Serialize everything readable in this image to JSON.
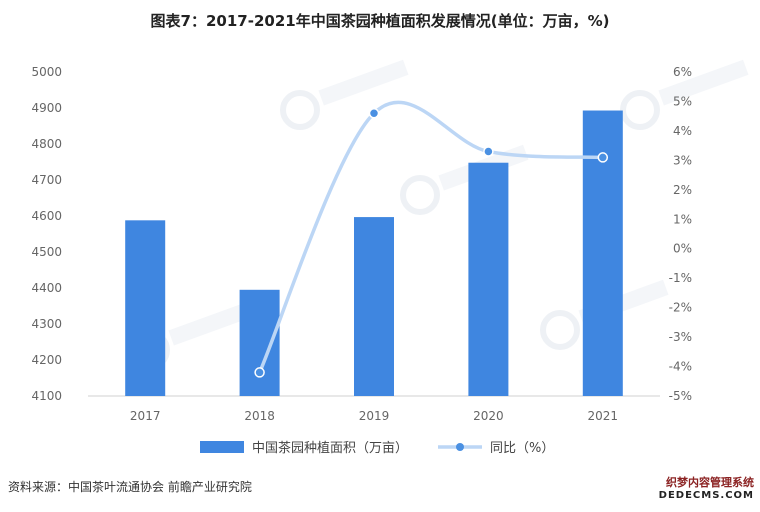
{
  "title": "图表7：2017-2021年中国茶园种植面积发展情况(单位：万亩，%)",
  "source": "资料来源：中国茶叶流通协会 前瞻产业研究院",
  "watermark": {
    "line1": "织梦内容管理系统",
    "line2": "DEDECMS.COM"
  },
  "chart_data": {
    "type": "bar",
    "categories": [
      "2017",
      "2018",
      "2019",
      "2020",
      "2021"
    ],
    "series": [
      {
        "name": "中国茶园种植面积（万亩）",
        "type": "bar",
        "axis": "left",
        "values": [
          4588,
          4395,
          4597,
          4748,
          4893
        ],
        "color": "#3f86e0"
      },
      {
        "name": "同比（%）",
        "type": "line",
        "axis": "right",
        "values": [
          null,
          -4.2,
          4.6,
          3.3,
          3.1
        ],
        "color": "#bcd6f5",
        "marker_color": "#4a90e2"
      }
    ],
    "y_left": {
      "ylim": [
        4100,
        5000
      ],
      "ticks": [
        "4100",
        "4200",
        "4300",
        "4400",
        "4500",
        "4600",
        "4700",
        "4800",
        "4900",
        "5000"
      ]
    },
    "y_right": {
      "ylim": [
        -5,
        6
      ],
      "ticks": [
        "6%",
        "5%",
        "4%",
        "3%",
        "2%",
        "1%",
        "0%",
        "-1%",
        "-2%",
        "-3%",
        "-4%",
        "-5%"
      ]
    },
    "grid": false,
    "legend_position": "bottom"
  }
}
